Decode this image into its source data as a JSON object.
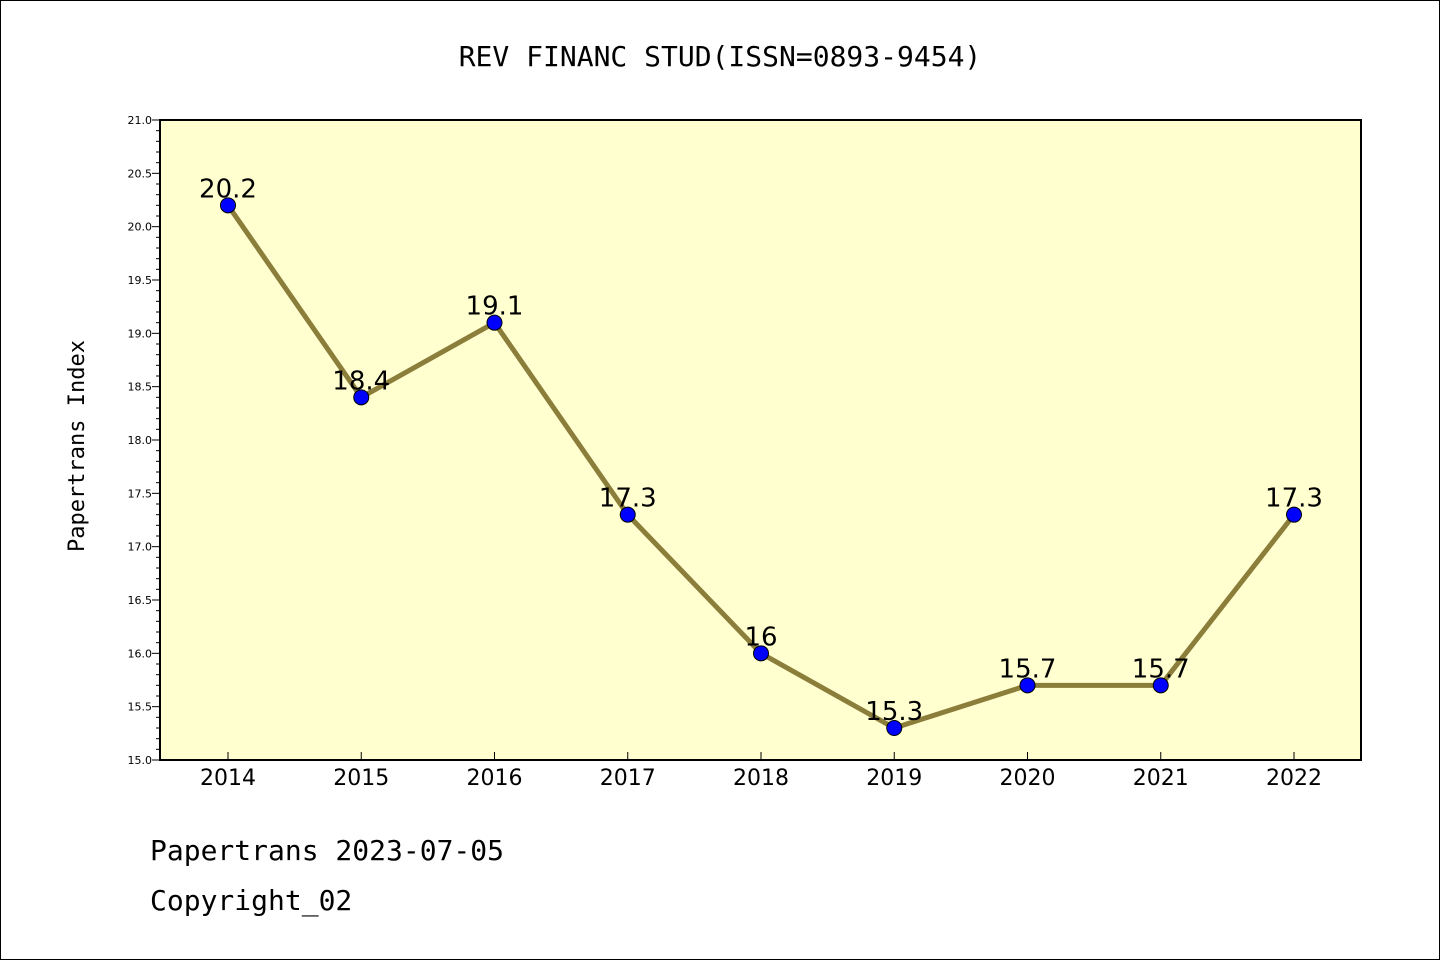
{
  "footer": {
    "line1": "Papertrans 2023-07-05",
    "line2": "Copyright_02"
  },
  "chart_data": {
    "type": "line",
    "title": "REV FINANC STUD(ISSN=0893-9454)",
    "xlabel": "",
    "ylabel": "Papertrans Index",
    "categories": [
      "2014",
      "2015",
      "2016",
      "2017",
      "2018",
      "2019",
      "2020",
      "2021",
      "2022"
    ],
    "values": [
      20.2,
      18.4,
      19.1,
      17.3,
      16,
      15.3,
      15.7,
      15.7,
      17.3
    ],
    "data_labels": [
      "20.2",
      "18.4",
      "19.1",
      "17.3",
      "16",
      "15.3",
      "15.7",
      "15.7",
      "17.3"
    ],
    "ylim": [
      15.0,
      21.0
    ],
    "yticks": [
      15.0,
      15.5,
      16.0,
      16.5,
      17.0,
      17.5,
      18.0,
      18.5,
      19.0,
      19.5,
      20.0,
      20.5,
      21.0
    ],
    "grid": false,
    "colors": {
      "plot_background": "#ffffd0",
      "line": "#8b7d3a",
      "marker": "#0000ff"
    }
  }
}
